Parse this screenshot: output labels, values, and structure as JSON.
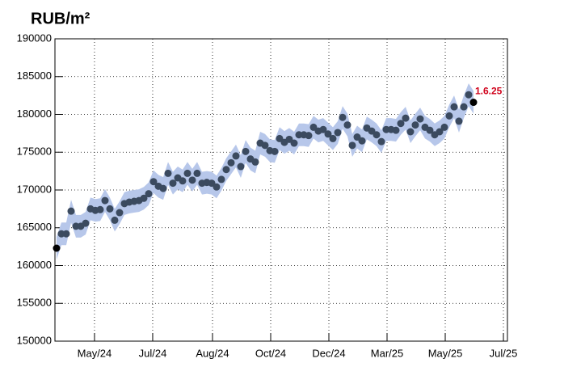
{
  "chart_data": {
    "type": "scatter-band",
    "title": "RUB/m²",
    "annotation": "1.6.25",
    "annotation_color": "#d0021b",
    "color": "#3b4a5f",
    "endpoint_color": "#000000",
    "band_color": "#b7c7ea",
    "band": 1500,
    "grid": true,
    "x": [
      0,
      1,
      2,
      3,
      4,
      5,
      6,
      7,
      8,
      9,
      10,
      11,
      12,
      13,
      14,
      15,
      16,
      17,
      18,
      19,
      20,
      21,
      22,
      23,
      24,
      25,
      26,
      27,
      28,
      29,
      30,
      31,
      32,
      33,
      34,
      35,
      36,
      37,
      38,
      39,
      40,
      41,
      42,
      43,
      44,
      45,
      46,
      47,
      48,
      49,
      50,
      51,
      52,
      53,
      54,
      55,
      56,
      57,
      58,
      59,
      60,
      61,
      62,
      63,
      64,
      65,
      66,
      67,
      68,
      69,
      70,
      71,
      72,
      73,
      74,
      75,
      76,
      77,
      78,
      79,
      80,
      81,
      82,
      83,
      84,
      85,
      86
    ],
    "values": [
      162300,
      164200,
      164200,
      167200,
      165200,
      165200,
      165600,
      167500,
      167300,
      167400,
      168600,
      167500,
      166000,
      167000,
      168200,
      168400,
      168500,
      168600,
      168900,
      169500,
      171100,
      170500,
      170200,
      172200,
      170900,
      171600,
      171200,
      172200,
      171300,
      172200,
      170900,
      171000,
      170900,
      170400,
      171400,
      172700,
      173600,
      174500,
      173100,
      175100,
      174100,
      173700,
      176200,
      175900,
      175200,
      175100,
      176800,
      176300,
      176700,
      176200,
      177300,
      177300,
      177200,
      178300,
      177800,
      178000,
      177400,
      176800,
      177600,
      179600,
      178600,
      175900,
      177000,
      176500,
      178200,
      177800,
      177300,
      176400,
      178000,
      178000,
      177900,
      178800,
      179500,
      177700,
      178600,
      179400,
      178300,
      177900,
      177300,
      177700,
      178300,
      179800,
      181000,
      179100,
      181000,
      182600,
      181600
    ],
    "xlim": [
      -0.33,
      93
    ],
    "xticks": [
      {
        "value": 7.83,
        "label": "May/24"
      },
      {
        "value": 19.83,
        "label": "Jul/24"
      },
      {
        "value": 32.17,
        "label": "Aug/24"
      },
      {
        "value": 44.17,
        "label": "Oct/24"
      },
      {
        "value": 56.17,
        "label": "Dec/24"
      },
      {
        "value": 68.17,
        "label": "Mar/25"
      },
      {
        "value": 80.17,
        "label": "May/25"
      },
      {
        "value": 92.17,
        "label": "Jul/25"
      }
    ],
    "ylim": [
      150000,
      190000
    ],
    "yticks": [
      150000,
      155000,
      160000,
      165000,
      170000,
      175000,
      180000,
      185000,
      190000
    ]
  }
}
